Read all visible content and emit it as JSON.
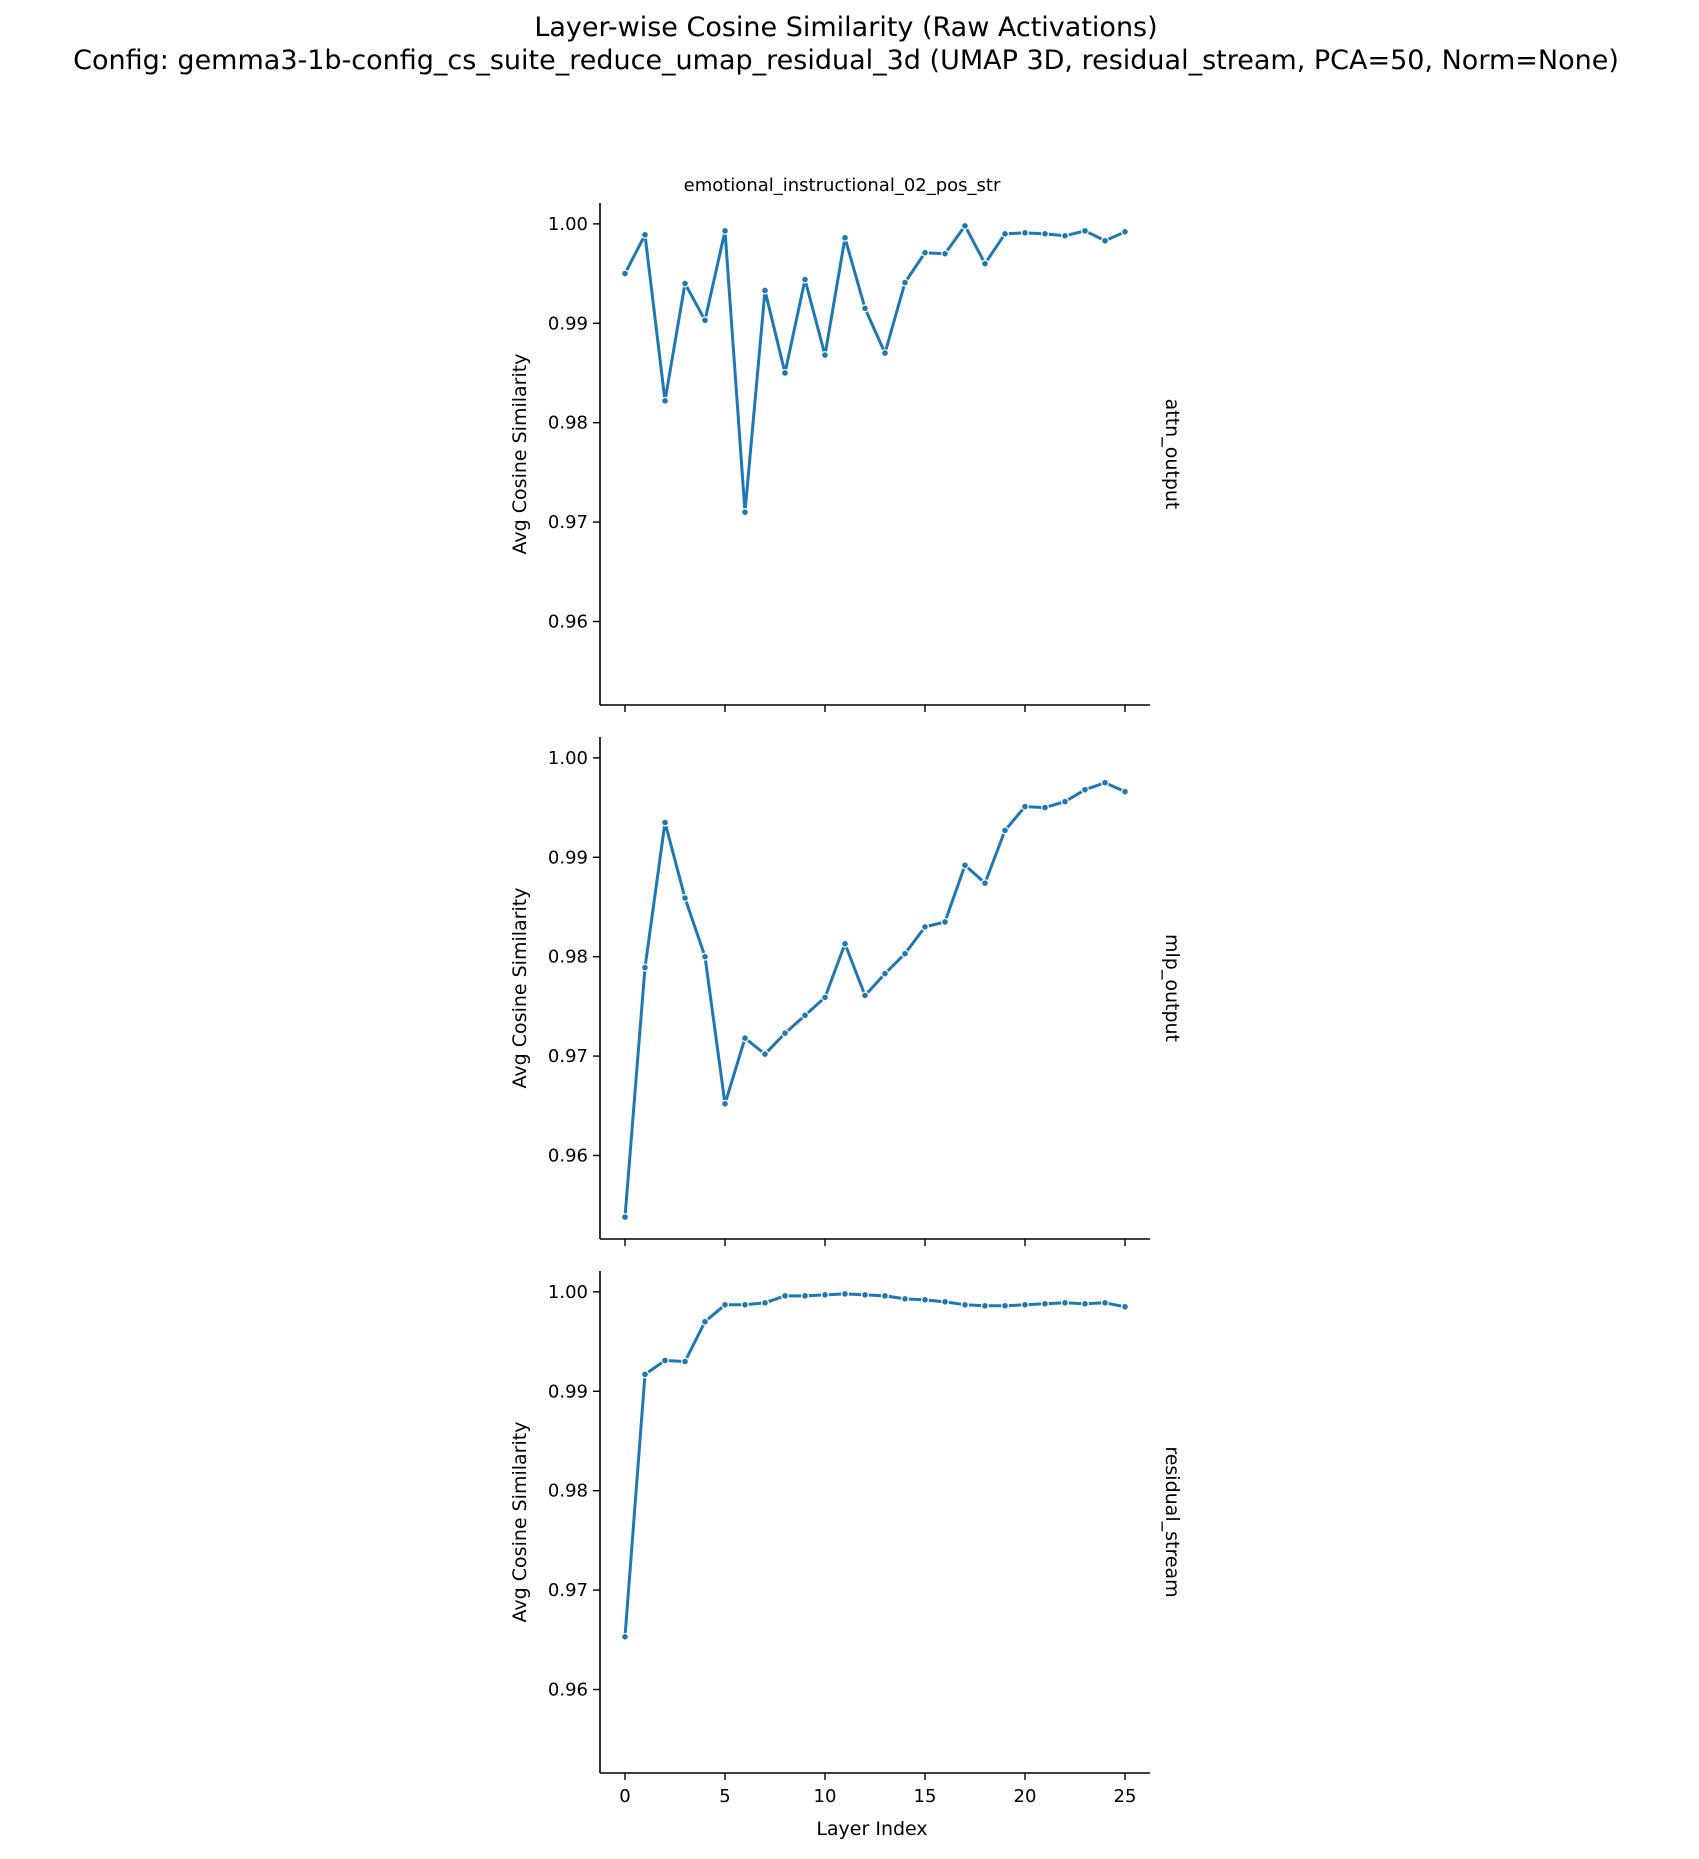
{
  "figure": {
    "title_line1": "Layer-wise Cosine Similarity (Raw Activations)",
    "title_line2": "Config: gemma3-1b-config_cs_suite_reduce_umap_residual_3d (UMAP 3D, residual_stream, PCA=50, Norm=None)",
    "column_title": "emotional_instructional_02_pos_str"
  },
  "chart_data": [
    {
      "type": "line",
      "row_label": "attn_output",
      "xlabel": "",
      "ylabel": "Avg Cosine Similarity",
      "xlim": [
        -1.25,
        26.25
      ],
      "ylim": [
        0.9516,
        1.0021
      ],
      "xticks": [
        0,
        5,
        10,
        15,
        20,
        25
      ],
      "yticks": [
        0.96,
        0.97,
        0.98,
        0.99,
        1.0
      ],
      "ytick_labels": [
        "0.96",
        "0.97",
        "0.98",
        "0.99",
        "1.00"
      ],
      "xtick_labels": [
        "",
        "",
        "",
        "",
        "",
        ""
      ],
      "color": "#1f77b4",
      "x": [
        0,
        1,
        2,
        3,
        4,
        5,
        6,
        7,
        8,
        9,
        10,
        11,
        12,
        13,
        14,
        15,
        16,
        17,
        18,
        19,
        20,
        21,
        22,
        23,
        24,
        25
      ],
      "y": [
        0.995,
        0.9989,
        0.9822,
        0.994,
        0.9903,
        0.9993,
        0.971,
        0.9933,
        0.985,
        0.9944,
        0.9868,
        0.9986,
        0.9915,
        0.987,
        0.9941,
        0.9971,
        0.997,
        0.9998,
        0.996,
        0.999,
        0.9991,
        0.999,
        0.9988,
        0.9993,
        0.9983,
        0.9992
      ]
    },
    {
      "type": "line",
      "row_label": "mlp_output",
      "xlabel": "",
      "ylabel": "Avg Cosine Similarity",
      "xlim": [
        -1.25,
        26.25
      ],
      "ylim": [
        0.9516,
        1.0021
      ],
      "xticks": [
        0,
        5,
        10,
        15,
        20,
        25
      ],
      "yticks": [
        0.96,
        0.97,
        0.98,
        0.99,
        1.0
      ],
      "ytick_labels": [
        "0.96",
        "0.97",
        "0.98",
        "0.99",
        "1.00"
      ],
      "xtick_labels": [
        "",
        "",
        "",
        "",
        "",
        ""
      ],
      "color": "#1f77b4",
      "x": [
        0,
        1,
        2,
        3,
        4,
        5,
        6,
        7,
        8,
        9,
        10,
        11,
        12,
        13,
        14,
        15,
        16,
        17,
        18,
        19,
        20,
        21,
        22,
        23,
        24,
        25
      ],
      "y": [
        0.9538,
        0.9789,
        0.9935,
        0.9859,
        0.98,
        0.9652,
        0.9718,
        0.9702,
        0.9723,
        0.9741,
        0.9759,
        0.9813,
        0.9761,
        0.9783,
        0.9803,
        0.983,
        0.9835,
        0.9892,
        0.9874,
        0.9927,
        0.9951,
        0.995,
        0.9956,
        0.9968,
        0.9975,
        0.9966
      ]
    },
    {
      "type": "line",
      "row_label": "residual_stream",
      "xlabel": "Layer Index",
      "ylabel": "Avg Cosine Similarity",
      "xlim": [
        -1.25,
        26.25
      ],
      "ylim": [
        0.9516,
        1.0021
      ],
      "xticks": [
        0,
        5,
        10,
        15,
        20,
        25
      ],
      "yticks": [
        0.96,
        0.97,
        0.98,
        0.99,
        1.0
      ],
      "ytick_labels": [
        "0.96",
        "0.97",
        "0.98",
        "0.99",
        "1.00"
      ],
      "xtick_labels": [
        "0",
        "5",
        "10",
        "15",
        "20",
        "25"
      ],
      "color": "#1f77b4",
      "x": [
        0,
        1,
        2,
        3,
        4,
        5,
        6,
        7,
        8,
        9,
        10,
        11,
        12,
        13,
        14,
        15,
        16,
        17,
        18,
        19,
        20,
        21,
        22,
        23,
        24,
        25
      ],
      "y": [
        0.9653,
        0.9917,
        0.9931,
        0.993,
        0.997,
        0.9987,
        0.9987,
        0.9989,
        0.9996,
        0.9996,
        0.9997,
        0.9998,
        0.9997,
        0.9996,
        0.9993,
        0.9992,
        0.999,
        0.9987,
        0.9986,
        0.9986,
        0.9987,
        0.9988,
        0.9989,
        0.9988,
        0.9989,
        0.9985
      ]
    }
  ]
}
